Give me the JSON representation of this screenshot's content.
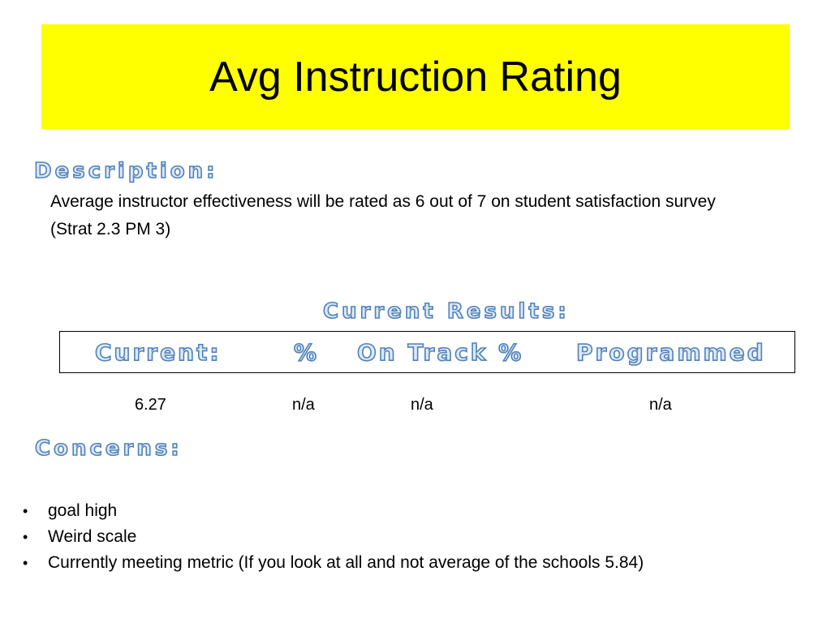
{
  "title": "Avg Instruction Rating",
  "description": {
    "heading": "Description:",
    "body": "Average instructor effectiveness will be rated as 6 out of 7 on student satisfaction survey",
    "reference": "(Strat 2.3 PM 3)"
  },
  "current_results": {
    "heading": "Current Results:",
    "columns": [
      "Current:",
      "%",
      "On Track %",
      "Programmed"
    ],
    "values": [
      "6.27",
      "n/a",
      "n/a",
      "n/a"
    ]
  },
  "concerns": {
    "heading": "Concerns:",
    "bullet": "•",
    "items": [
      "goal high",
      "Weird scale",
      "Currently meeting metric (If you look at all and not average of the schools 5.84)"
    ]
  },
  "colors": {
    "title_banner": "#ffff00",
    "heading_outline": "#4f81bd",
    "heading_fill": "#dfe9f3"
  }
}
